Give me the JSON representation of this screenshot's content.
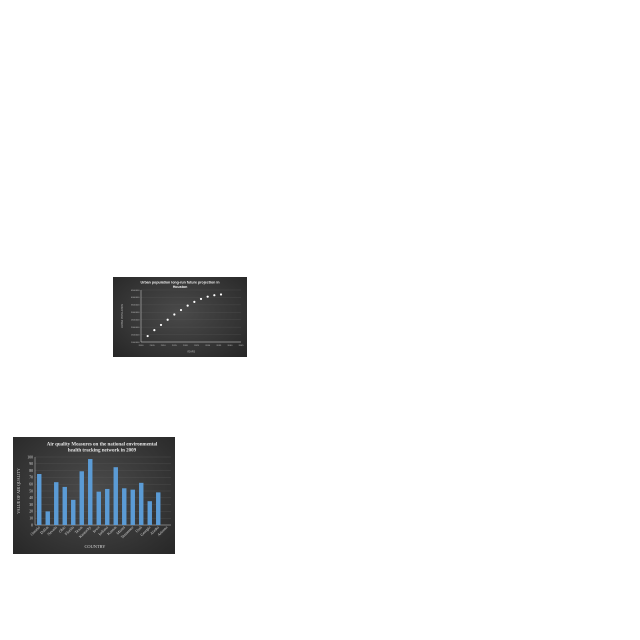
{
  "chart_data": [
    {
      "type": "scatter",
      "title_lines": [
        "Urban population long-run future projection in",
        "Houston"
      ],
      "xlabel": "YEARS",
      "ylabel": "URBAN POPULATION",
      "x_ticks": [
        "2000",
        "2005",
        "2010",
        "2015",
        "2020",
        "2025",
        "2030",
        "2035",
        "2040",
        "2045"
      ],
      "xlim": [
        2000,
        2045
      ],
      "y_ticks": [
        "1000000",
        "1500000",
        "2000000",
        "2500000",
        "3000000",
        "3500000",
        "4000000",
        "4500000"
      ],
      "ylim": [
        1000000,
        4500000
      ],
      "grid": true,
      "point_color": "#ffffff",
      "x": [
        2003,
        2006,
        2009,
        2012,
        2015,
        2018,
        2021,
        2024,
        2027,
        2030,
        2033,
        2036
      ],
      "y": [
        1400000,
        1800000,
        2150000,
        2500000,
        2850000,
        3150000,
        3450000,
        3700000,
        3900000,
        4050000,
        4150000,
        4200000
      ]
    },
    {
      "type": "bar",
      "title_lines": [
        "Air quality Measures on the national environmental",
        "health tracking network in 2009"
      ],
      "xlabel": "COUNTRY",
      "ylabel": "VALUE OF AIR QUALITY",
      "y_ticks": [
        "0",
        "10",
        "20",
        "30",
        "40",
        "50",
        "60",
        "70",
        "80",
        "90",
        "100"
      ],
      "ylim": [
        0,
        100
      ],
      "grid": true,
      "bar_color": "#5b9bd5",
      "categories": [
        "Ontario",
        "Dallas",
        "Nevada",
        "Ohio",
        "Florida",
        "Texas",
        "Kentucky",
        "Iowa",
        "Indiana",
        "Kansas",
        "Miami",
        "Tennessee",
        "Utah",
        "Georgia",
        "Alaska",
        "Arizona"
      ],
      "values": [
        75,
        20,
        63,
        56,
        37,
        79,
        97,
        49,
        53,
        85,
        54,
        52,
        62,
        35,
        48,
        0
      ]
    }
  ]
}
